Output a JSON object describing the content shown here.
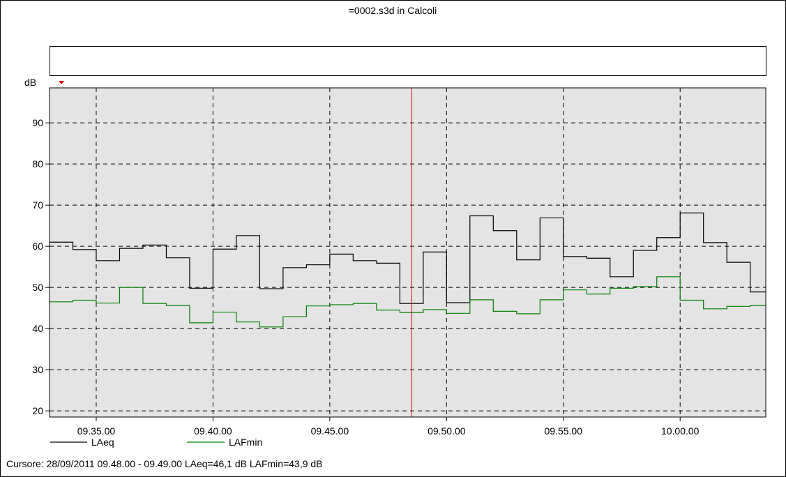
{
  "window": {
    "title": "=0002.s3d in Calcoli"
  },
  "header_box_text": "",
  "chart_data": {
    "type": "line",
    "step": true,
    "title": "=0002.s3d in Calcoli",
    "ylabel": "dB",
    "xlabel": "",
    "ylim": [
      18.5,
      98.5
    ],
    "y_ticks": [
      20,
      30,
      40,
      50,
      60,
      70,
      80,
      90
    ],
    "x_ticks": [
      "09.35.00",
      "09.40.00",
      "09.45.00",
      "09.50.00",
      "09.55.00",
      "10.00.00"
    ],
    "xlim": [
      "09.33.00",
      "10.03.40"
    ],
    "grid": true,
    "legend_position": "bottom-left",
    "cursor_time": "09.48.30",
    "plot_background": "#e4e4e4",
    "colors": {
      "LAeq": "#000000",
      "LAFmin": "#008000",
      "cursor": "#e00000"
    },
    "x": [
      "09.33.00",
      "09.34.00",
      "09.35.00",
      "09.36.00",
      "09.37.00",
      "09.38.00",
      "09.39.00",
      "09.40.00",
      "09.41.00",
      "09.42.00",
      "09.43.00",
      "09.44.00",
      "09.45.00",
      "09.46.00",
      "09.47.00",
      "09.48.00",
      "09.49.00",
      "09.50.00",
      "09.51.00",
      "09.52.00",
      "09.53.00",
      "09.54.00",
      "09.55.00",
      "09.56.00",
      "09.57.00",
      "09.58.00",
      "09.59.00",
      "10.00.00",
      "10.01.00",
      "10.02.00",
      "10.03.00"
    ],
    "series": [
      {
        "name": "LAeq",
        "values": [
          61.0,
          59.2,
          56.5,
          59.5,
          60.3,
          57.2,
          49.8,
          59.3,
          62.6,
          49.7,
          54.8,
          55.5,
          58.1,
          56.5,
          55.9,
          46.1,
          58.6,
          46.3,
          67.4,
          63.8,
          56.7,
          66.9,
          57.5,
          57.1,
          52.6,
          59.0,
          62.1,
          68.1,
          60.9,
          56.1,
          48.9
        ]
      },
      {
        "name": "LAFmin",
        "values": [
          46.5,
          46.9,
          46.2,
          50.0,
          46.1,
          45.6,
          41.4,
          44.0,
          41.6,
          40.4,
          42.9,
          45.5,
          45.8,
          46.1,
          44.5,
          43.9,
          44.6,
          43.7,
          47.0,
          44.2,
          43.6,
          47.0,
          49.4,
          48.4,
          49.8,
          50.2,
          52.6,
          46.9,
          44.8,
          45.4,
          45.6
        ]
      }
    ]
  },
  "status": {
    "cursor_text": "Cursore: 28/09/2011 09.48.00 - 09.49.00  LAeq=46,1 dB  LAFmin=43,9 dB"
  }
}
